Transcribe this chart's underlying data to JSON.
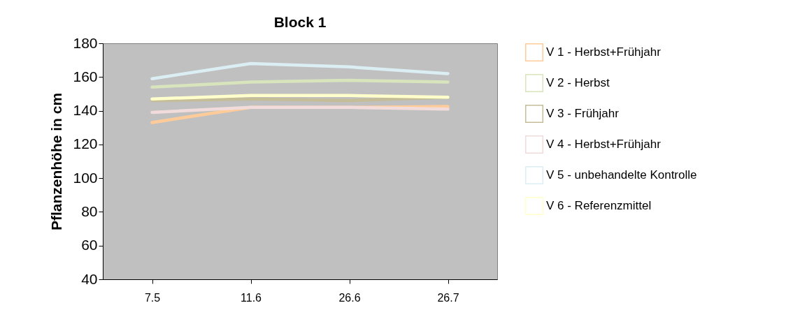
{
  "chart_data": {
    "type": "line",
    "title": "Block 1",
    "ylabel": "Pflanzenhöhe in cm",
    "categories": [
      "7.5",
      "11.6",
      "26.6",
      "26.7"
    ],
    "series": [
      {
        "name": "V 1 - Herbst+Frühjahr",
        "color": "#ffcc99",
        "values": [
          133,
          142,
          142,
          142.5
        ]
      },
      {
        "name": "V 2 - Herbst",
        "color": "#d8e4bc",
        "values": [
          154,
          157,
          158,
          157
        ]
      },
      {
        "name": "V 3 - Frühjahr",
        "color": "#c4bd97",
        "values": [
          146,
          147,
          146,
          148
        ]
      },
      {
        "name": "V 4 - Herbst+Frühjahr",
        "color": "#f2dcdb",
        "values": [
          139,
          142,
          142,
          141
        ]
      },
      {
        "name": "V 5 - unbehandelte Kontrolle",
        "color": "#dbeef3",
        "values": [
          159,
          168,
          166,
          162
        ]
      },
      {
        "name": "V 6 - Referenzmittel",
        "color": "#ffffcc",
        "values": [
          147,
          149,
          149,
          148
        ]
      }
    ],
    "ylim": [
      40,
      180
    ],
    "yticks": [
      40,
      60,
      80,
      100,
      120,
      140,
      160,
      180
    ],
    "grid": false,
    "legend": "right",
    "marker": "none",
    "line_style": "solid"
  }
}
